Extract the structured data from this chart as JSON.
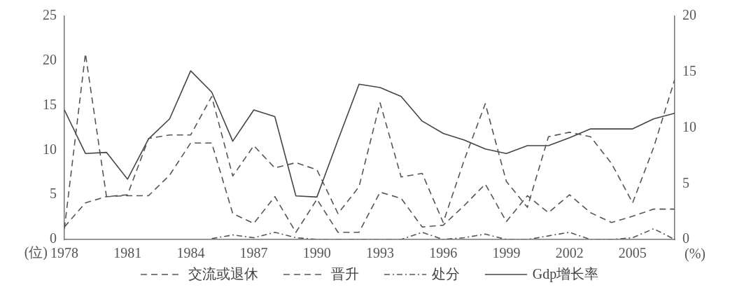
{
  "chart_data": {
    "type": "line",
    "ylabel": "(位)",
    "y2label": "(%)",
    "x": [
      1978,
      1979,
      1980,
      1981,
      1982,
      1983,
      1984,
      1985,
      1986,
      1987,
      1988,
      1989,
      1990,
      1991,
      1992,
      1993,
      1994,
      1995,
      1996,
      1997,
      1998,
      1999,
      2000,
      2001,
      2002,
      2003,
      2004,
      2005,
      2006,
      2007
    ],
    "xlim": [
      1978,
      2007
    ],
    "xticks": [
      1978,
      1981,
      1984,
      1987,
      1990,
      1993,
      1996,
      1999,
      2002,
      2005
    ],
    "ylim": [
      0,
      25
    ],
    "yticks": [
      0,
      5,
      10,
      15,
      20,
      25
    ],
    "y2lim": [
      0,
      20
    ],
    "y2ticks": [
      0,
      5,
      10,
      15,
      20
    ],
    "grid": false,
    "legend": "bottom",
    "marker": "none",
    "series": [
      {
        "name": "交流或退休",
        "color": "#555555",
        "line_style": "dashed",
        "values": [
          1.4,
          4.1,
          4.8,
          4.9,
          4.9,
          7.2,
          10.8,
          10.8,
          2.9,
          1.8,
          4.8,
          0.8,
          4.5,
          0.8,
          0.8,
          5.3,
          4.6,
          1.4,
          1.6,
          3.8,
          6.2,
          2.0,
          4.9,
          3.0,
          5.0,
          3.0,
          1.9,
          2.6,
          3.4,
          3.4
        ]
      },
      {
        "name": "晋升",
        "color": "#555555",
        "line_style": "dashed",
        "values": [
          1.2,
          20.8,
          4.8,
          5.0,
          11.3,
          11.7,
          11.7,
          16.0,
          7.1,
          10.5,
          8.0,
          8.6,
          7.8,
          2.9,
          5.9,
          15.3,
          7.0,
          7.4,
          1.9,
          8.9,
          15.2,
          6.5,
          3.6,
          11.5,
          12.0,
          11.5,
          8.5,
          4.1,
          10.3,
          17.9
        ]
      },
      {
        "name": "处分",
        "color": "#555555",
        "line_style": "dashdot",
        "values": [
          null,
          null,
          null,
          null,
          null,
          null,
          null,
          0.1,
          0.5,
          0.2,
          0.8,
          0.2,
          0,
          0,
          0,
          0,
          0,
          0.8,
          0,
          0.2,
          0.6,
          0,
          0,
          0.4,
          0.8,
          0,
          0,
          0.2,
          1.2,
          0
        ]
      },
      {
        "name": "Gdp增长率",
        "color": "#444444",
        "line_style": "solid",
        "axis": "y2",
        "values": [
          11.6,
          7.7,
          7.8,
          5.4,
          9.0,
          10.8,
          15.1,
          13.2,
          8.8,
          11.6,
          11.0,
          3.9,
          3.8,
          8.9,
          13.9,
          13.6,
          12.8,
          10.6,
          9.5,
          8.9,
          8.1,
          7.7,
          8.4,
          8.4,
          9.1,
          9.9,
          9.9,
          9.9,
          10.8,
          11.3
        ]
      }
    ]
  }
}
